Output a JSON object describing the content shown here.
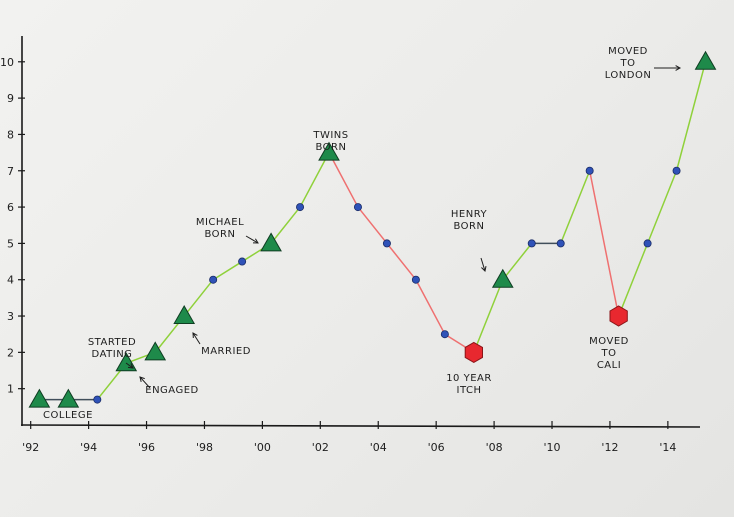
{
  "chart_data": {
    "type": "line",
    "title": "",
    "xlabel": "",
    "ylabel": "",
    "xlim": [
      1991.7,
      2015.8
    ],
    "ylim": [
      0,
      10.6
    ],
    "x_ticks": [
      1992,
      1994,
      1996,
      1998,
      2000,
      2002,
      2004,
      2006,
      2008,
      2010,
      2012,
      2014
    ],
    "x_tick_labels": [
      "'92",
      "'94",
      "'96",
      "'98",
      "'00",
      "'02",
      "'04",
      "'06",
      "'08",
      "'10",
      "'12",
      "'14"
    ],
    "y_ticks": [
      1,
      2,
      3,
      4,
      5,
      6,
      7,
      8,
      9,
      10
    ],
    "y_tick_labels": [
      "1",
      "2",
      "3",
      "4",
      "5",
      "6",
      "7",
      "8",
      "9",
      "10"
    ],
    "grid": false,
    "colors": {
      "up": "#8fd13a",
      "down": "#ef7070",
      "flat": "#404e5a",
      "marker_good": "#1e8a4a",
      "marker_bad": "#e8282f",
      "dot": "#2f52b8"
    },
    "points": [
      {
        "x": 1992.3,
        "y": 0.7,
        "marker": "triangle"
      },
      {
        "x": 1993.3,
        "y": 0.7,
        "marker": "triangle"
      },
      {
        "x": 1994.3,
        "y": 0.7,
        "marker": "dot"
      },
      {
        "x": 1995.3,
        "y": 1.7,
        "marker": "triangle"
      },
      {
        "x": 1996.3,
        "y": 2.0,
        "marker": "triangle"
      },
      {
        "x": 1997.3,
        "y": 3.0,
        "marker": "triangle"
      },
      {
        "x": 1998.3,
        "y": 4.0,
        "marker": "dot"
      },
      {
        "x": 1999.3,
        "y": 4.5,
        "marker": "dot"
      },
      {
        "x": 2000.3,
        "y": 5.0,
        "marker": "triangle"
      },
      {
        "x": 2001.3,
        "y": 6.0,
        "marker": "dot"
      },
      {
        "x": 2002.3,
        "y": 7.5,
        "marker": "triangle"
      },
      {
        "x": 2003.3,
        "y": 6.0,
        "marker": "dot"
      },
      {
        "x": 2004.3,
        "y": 5.0,
        "marker": "dot"
      },
      {
        "x": 2005.3,
        "y": 4.0,
        "marker": "dot"
      },
      {
        "x": 2006.3,
        "y": 2.5,
        "marker": "dot"
      },
      {
        "x": 2007.3,
        "y": 2.0,
        "marker": "hexagon"
      },
      {
        "x": 2008.3,
        "y": 4.0,
        "marker": "triangle"
      },
      {
        "x": 2009.3,
        "y": 5.0,
        "marker": "dot"
      },
      {
        "x": 2010.3,
        "y": 5.0,
        "marker": "dot"
      },
      {
        "x": 2011.3,
        "y": 7.0,
        "marker": "dot"
      },
      {
        "x": 2012.3,
        "y": 3.0,
        "marker": "hexagon"
      },
      {
        "x": 2013.3,
        "y": 5.0,
        "marker": "dot"
      },
      {
        "x": 2014.3,
        "y": 7.0,
        "marker": "dot"
      },
      {
        "x": 2015.3,
        "y": 10.0,
        "marker": "triangle"
      }
    ],
    "annotations": [
      {
        "lines": [
          "COLLEGE"
        ]
      },
      {
        "lines": [
          "STARTED",
          "DATING"
        ]
      },
      {
        "lines": [
          "ENGAGED"
        ]
      },
      {
        "lines": [
          "MARRIED"
        ]
      },
      {
        "lines": [
          "MICHAEL",
          "BORN"
        ]
      },
      {
        "lines": [
          "TWINS",
          "BORN"
        ]
      },
      {
        "lines": [
          "10 YEAR",
          "ITCH"
        ]
      },
      {
        "lines": [
          "HENRY",
          "BORN"
        ]
      },
      {
        "lines": [
          "MOVED",
          "TO",
          "CALI"
        ]
      },
      {
        "lines": [
          "MOVED",
          "TO",
          "LONDON"
        ]
      }
    ]
  }
}
